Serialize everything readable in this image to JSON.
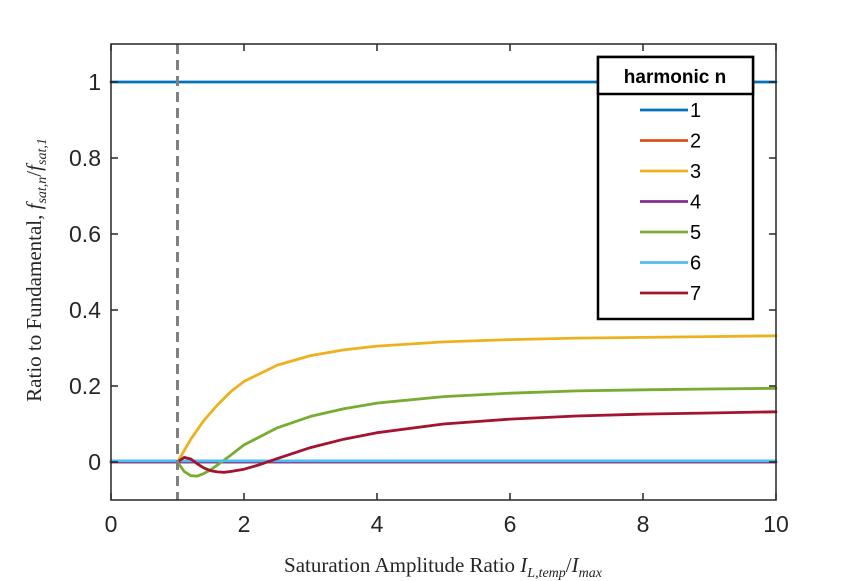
{
  "chart_data": {
    "type": "line",
    "xlabel": "Saturation Amplitude Ratio I_{L,temp}/I_{max}",
    "xlabel_main": "Saturation Amplitude Ratio ",
    "xlabel_sym": "I",
    "xlabel_sub1": "L,temp",
    "xlabel_slash": "/",
    "xlabel_sym2": "I",
    "xlabel_sub2": "max",
    "ylabel": "Ratio to Fundamental, f_{sat,n}/f_{sat,1}",
    "ylabel_main": "Ratio to Fundamental, ",
    "ylabel_sym": "f",
    "ylabel_sub1": "sat,n",
    "ylabel_slash": "/",
    "ylabel_sym2": "f",
    "ylabel_sub2": "sat,1",
    "xlim": [
      0,
      10
    ],
    "ylim": [
      -0.1,
      1.1
    ],
    "xticks": [
      0,
      2,
      4,
      6,
      8,
      10
    ],
    "yticks": [
      0,
      0.2,
      0.4,
      0.6,
      0.8,
      1
    ],
    "xtick_labels": [
      "0",
      "2",
      "4",
      "6",
      "8",
      "10"
    ],
    "ytick_labels": [
      "0",
      "0.2",
      "0.4",
      "0.6",
      "0.8",
      "1"
    ],
    "vline": {
      "x": 1,
      "style": "dashed",
      "color": "#808080"
    },
    "legend": {
      "title": "harmonic n",
      "location": "top-right"
    },
    "grid": false,
    "series": [
      {
        "name": "1",
        "color": "#0072BD",
        "x": [
          0,
          10
        ],
        "y": [
          1,
          1
        ]
      },
      {
        "name": "2",
        "color": "#D95319",
        "x": [
          0,
          10
        ],
        "y": [
          0,
          0
        ]
      },
      {
        "name": "3",
        "color": "#EDB120",
        "x": [
          1,
          1.1,
          1.2,
          1.4,
          1.6,
          1.8,
          2,
          2.5,
          3,
          3.5,
          4,
          5,
          6,
          7,
          8,
          9,
          10
        ],
        "y": [
          0,
          0.03,
          0.06,
          0.11,
          0.15,
          0.185,
          0.212,
          0.255,
          0.28,
          0.295,
          0.305,
          0.316,
          0.322,
          0.326,
          0.328,
          0.33,
          0.332
        ]
      },
      {
        "name": "4",
        "color": "#7E2F8E",
        "x": [
          0,
          10
        ],
        "y": [
          0,
          0
        ]
      },
      {
        "name": "5",
        "color": "#77AC30",
        "x": [
          1,
          1.1,
          1.2,
          1.3,
          1.4,
          1.5,
          1.6,
          1.8,
          2,
          2.5,
          3,
          3.5,
          4,
          5,
          6,
          7,
          8,
          9,
          10
        ],
        "y": [
          0,
          -0.025,
          -0.036,
          -0.037,
          -0.03,
          -0.02,
          -0.008,
          0.018,
          0.045,
          0.09,
          0.12,
          0.14,
          0.155,
          0.172,
          0.181,
          0.187,
          0.19,
          0.192,
          0.194
        ]
      },
      {
        "name": "6",
        "color": "#4DBEEE",
        "x": [
          0,
          10
        ],
        "y": [
          0.003,
          0.003
        ]
      },
      {
        "name": "7",
        "color": "#A2142F",
        "x": [
          1,
          1.1,
          1.2,
          1.3,
          1.4,
          1.5,
          1.6,
          1.7,
          1.8,
          2,
          2.2,
          2.5,
          3,
          3.5,
          4,
          5,
          6,
          7,
          8,
          9,
          10
        ],
        "y": [
          0,
          0.012,
          0.008,
          -0.005,
          -0.016,
          -0.023,
          -0.026,
          -0.027,
          -0.025,
          -0.019,
          -0.009,
          0.009,
          0.038,
          0.06,
          0.077,
          0.1,
          0.113,
          0.121,
          0.126,
          0.129,
          0.132
        ]
      }
    ]
  }
}
